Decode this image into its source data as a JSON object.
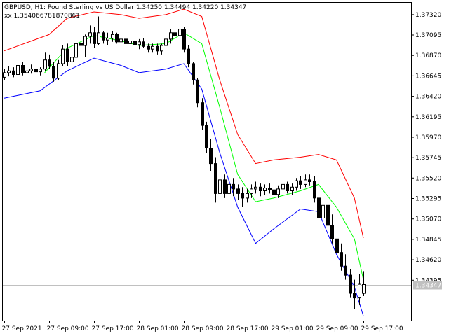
{
  "header": {
    "symbol_line": "GBPUSD, H1:  Pound Sterling vs US Dollar  1.34250 1.34494 1.34220 1.34347",
    "indicator_line": "xx 1.354066781870861"
  },
  "current_price": {
    "label": "1.34347",
    "line_color": "#c0c0c0",
    "tag_color": "#c0c0c0"
  },
  "colors": {
    "background": "#ffffff",
    "frame": "#000000",
    "candle": "#000000",
    "bull_fill": "#ffffff",
    "bear_fill": "#000000",
    "upper_band": "#ff0000",
    "middle_band": "#00ff00",
    "lower_band": "#0000ff"
  },
  "chart_data": {
    "type": "candlestick",
    "symbol": "GBPUSD",
    "timeframe": "H1",
    "y_ticks": [
      "1.37320",
      "1.37095",
      "1.36870",
      "1.36645",
      "1.36420",
      "1.36195",
      "1.35970",
      "1.35745",
      "1.35520",
      "1.35295",
      "1.35070",
      "1.34845",
      "1.34620",
      "1.34395"
    ],
    "ylim": [
      1.3395,
      1.3745
    ],
    "x_ticks": [
      "27 Sep 2021",
      "27 Sep 09:00",
      "27 Sep 17:00",
      "28 Sep 01:00",
      "28 Sep 09:00",
      "28 Sep 17:00",
      "29 Sep 01:00",
      "29 Sep 09:00",
      "29 Sep 17:00"
    ],
    "x_tick_bars": [
      0,
      10,
      20,
      30,
      40,
      50,
      60,
      70,
      80
    ],
    "bar_count": 82,
    "candles": [
      [
        1.3663,
        1.3672,
        1.366,
        1.3668
      ],
      [
        1.3668,
        1.3675,
        1.3664,
        1.367
      ],
      [
        1.367,
        1.3674,
        1.3663,
        1.3666
      ],
      [
        1.3666,
        1.368,
        1.3664,
        1.3676
      ],
      [
        1.3676,
        1.368,
        1.3665,
        1.3668
      ],
      [
        1.3668,
        1.3672,
        1.3662,
        1.367
      ],
      [
        1.367,
        1.3677,
        1.3667,
        1.3672
      ],
      [
        1.3672,
        1.3676,
        1.3667,
        1.3669
      ],
      [
        1.3669,
        1.3674,
        1.3665,
        1.3672
      ],
      [
        1.3672,
        1.369,
        1.367,
        1.3682
      ],
      [
        1.3682,
        1.3688,
        1.3672,
        1.3675
      ],
      [
        1.3675,
        1.368,
        1.3658,
        1.3662
      ],
      [
        1.3662,
        1.3682,
        1.366,
        1.3678
      ],
      [
        1.3678,
        1.3698,
        1.3675,
        1.3694
      ],
      [
        1.3694,
        1.37,
        1.3675,
        1.368
      ],
      [
        1.368,
        1.3692,
        1.3674,
        1.3685
      ],
      [
        1.3685,
        1.3705,
        1.368,
        1.37
      ],
      [
        1.37,
        1.3712,
        1.369,
        1.3698
      ],
      [
        1.3698,
        1.371,
        1.3685,
        1.3708
      ],
      [
        1.3708,
        1.372,
        1.37,
        1.3712
      ],
      [
        1.3712,
        1.3718,
        1.3695,
        1.37
      ],
      [
        1.37,
        1.373,
        1.3698,
        1.3712
      ],
      [
        1.3712,
        1.3714,
        1.37,
        1.3704
      ],
      [
        1.3704,
        1.3712,
        1.3698,
        1.3706
      ],
      [
        1.3706,
        1.3714,
        1.3702,
        1.371
      ],
      [
        1.371,
        1.3712,
        1.37,
        1.3702
      ],
      [
        1.3702,
        1.3708,
        1.3698,
        1.3705
      ],
      [
        1.3705,
        1.371,
        1.3698,
        1.37
      ],
      [
        1.37,
        1.3706,
        1.3695,
        1.3703
      ],
      [
        1.3703,
        1.3708,
        1.3697,
        1.3699
      ],
      [
        1.3699,
        1.3705,
        1.3694,
        1.3702
      ],
      [
        1.3702,
        1.3706,
        1.3695,
        1.3697
      ],
      [
        1.3697,
        1.37,
        1.369,
        1.3694
      ],
      [
        1.3694,
        1.37,
        1.369,
        1.3697
      ],
      [
        1.3697,
        1.37,
        1.3688,
        1.3692
      ],
      [
        1.3692,
        1.37,
        1.3688,
        1.3698
      ],
      [
        1.3698,
        1.371,
        1.3694,
        1.3705
      ],
      [
        1.3705,
        1.3716,
        1.37,
        1.3712
      ],
      [
        1.3712,
        1.3718,
        1.3705,
        1.3709
      ],
      [
        1.3709,
        1.3718,
        1.3706,
        1.3716
      ],
      [
        1.3716,
        1.3718,
        1.369,
        1.3694
      ],
      [
        1.3694,
        1.3698,
        1.3674,
        1.3678
      ],
      [
        1.3678,
        1.368,
        1.3655,
        1.366
      ],
      [
        1.366,
        1.3662,
        1.363,
        1.3635
      ],
      [
        1.3635,
        1.364,
        1.3605,
        1.361
      ],
      [
        1.361,
        1.3614,
        1.358,
        1.3585
      ],
      [
        1.3585,
        1.3595,
        1.356,
        1.3568
      ],
      [
        1.3568,
        1.3575,
        1.3525,
        1.3535
      ],
      [
        1.3535,
        1.356,
        1.3525,
        1.355
      ],
      [
        1.355,
        1.3556,
        1.353,
        1.3535
      ],
      [
        1.3535,
        1.355,
        1.353,
        1.3545
      ],
      [
        1.3545,
        1.3552,
        1.3532,
        1.354
      ],
      [
        1.354,
        1.3545,
        1.3528,
        1.3535
      ],
      [
        1.3535,
        1.3542,
        1.352,
        1.353
      ],
      [
        1.353,
        1.354,
        1.3525,
        1.3535
      ],
      [
        1.3535,
        1.3545,
        1.353,
        1.354
      ],
      [
        1.354,
        1.3548,
        1.3535,
        1.3542
      ],
      [
        1.3542,
        1.3546,
        1.3532,
        1.3538
      ],
      [
        1.3538,
        1.3545,
        1.3533,
        1.3541
      ],
      [
        1.3541,
        1.3546,
        1.3535,
        1.3539
      ],
      [
        1.3539,
        1.3545,
        1.353,
        1.3534
      ],
      [
        1.3534,
        1.3544,
        1.353,
        1.354
      ],
      [
        1.354,
        1.355,
        1.3535,
        1.3545
      ],
      [
        1.3545,
        1.3548,
        1.3535,
        1.3538
      ],
      [
        1.3538,
        1.3546,
        1.3533,
        1.3542
      ],
      [
        1.3542,
        1.3552,
        1.3538,
        1.3549
      ],
      [
        1.3549,
        1.3554,
        1.354,
        1.3545
      ],
      [
        1.3545,
        1.3556,
        1.3542,
        1.355
      ],
      [
        1.355,
        1.3556,
        1.3544,
        1.3548
      ],
      [
        1.3548,
        1.3554,
        1.3525,
        1.353
      ],
      [
        1.353,
        1.3536,
        1.3504,
        1.3508
      ],
      [
        1.3508,
        1.3526,
        1.3504,
        1.3522
      ],
      [
        1.3522,
        1.353,
        1.3498,
        1.35
      ],
      [
        1.35,
        1.3512,
        1.348,
        1.3485
      ],
      [
        1.3485,
        1.3495,
        1.3465,
        1.347
      ],
      [
        1.347,
        1.348,
        1.345,
        1.3455
      ],
      [
        1.3455,
        1.3468,
        1.344,
        1.3445
      ],
      [
        1.3445,
        1.3452,
        1.342,
        1.3425
      ],
      [
        1.3425,
        1.344,
        1.3408,
        1.342
      ],
      [
        1.342,
        1.3446,
        1.3412,
        1.3435
      ],
      [
        1.3425,
        1.34494,
        1.3422,
        1.34347
      ]
    ],
    "series": [
      {
        "name": "",
        "color": "#ff0000",
        "points": [
          [
            0,
            1.3692
          ],
          [
            10,
            1.371
          ],
          [
            14,
            1.3728
          ],
          [
            20,
            1.3735
          ],
          [
            26,
            1.3732
          ],
          [
            30,
            1.3728
          ],
          [
            36,
            1.3732
          ],
          [
            40,
            1.3738
          ],
          [
            44,
            1.373
          ],
          [
            48,
            1.366
          ],
          [
            52,
            1.36
          ],
          [
            56,
            1.3568
          ],
          [
            60,
            1.3572
          ],
          [
            66,
            1.3575
          ],
          [
            70,
            1.3578
          ],
          [
            74,
            1.3572
          ],
          [
            78,
            1.353
          ],
          [
            80,
            1.3486
          ]
        ]
      },
      {
        "name": "",
        "color": "#00ff00",
        "points": [
          [
            9,
            1.3668
          ],
          [
            14,
            1.3695
          ],
          [
            20,
            1.3709
          ],
          [
            26,
            1.3703
          ],
          [
            30,
            1.3698
          ],
          [
            36,
            1.37
          ],
          [
            40,
            1.3712
          ],
          [
            44,
            1.37
          ],
          [
            48,
            1.363
          ],
          [
            52,
            1.3556
          ],
          [
            56,
            1.3526
          ],
          [
            60,
            1.353
          ],
          [
            66,
            1.3538
          ],
          [
            70,
            1.3545
          ],
          [
            74,
            1.352
          ],
          [
            78,
            1.3485
          ],
          [
            80,
            1.344
          ]
        ]
      },
      {
        "name": "",
        "color": "#0000ff",
        "points": [
          [
            0,
            1.364
          ],
          [
            8,
            1.3648
          ],
          [
            14,
            1.367
          ],
          [
            20,
            1.3684
          ],
          [
            26,
            1.3676
          ],
          [
            30,
            1.3668
          ],
          [
            36,
            1.3672
          ],
          [
            40,
            1.3678
          ],
          [
            44,
            1.365
          ],
          [
            48,
            1.358
          ],
          [
            52,
            1.352
          ],
          [
            56,
            1.348
          ],
          [
            60,
            1.3496
          ],
          [
            66,
            1.3518
          ],
          [
            70,
            1.3515
          ],
          [
            74,
            1.3468
          ],
          [
            78,
            1.3432
          ],
          [
            80,
            1.34
          ]
        ]
      }
    ],
    "grid": false,
    "legend": "none"
  }
}
